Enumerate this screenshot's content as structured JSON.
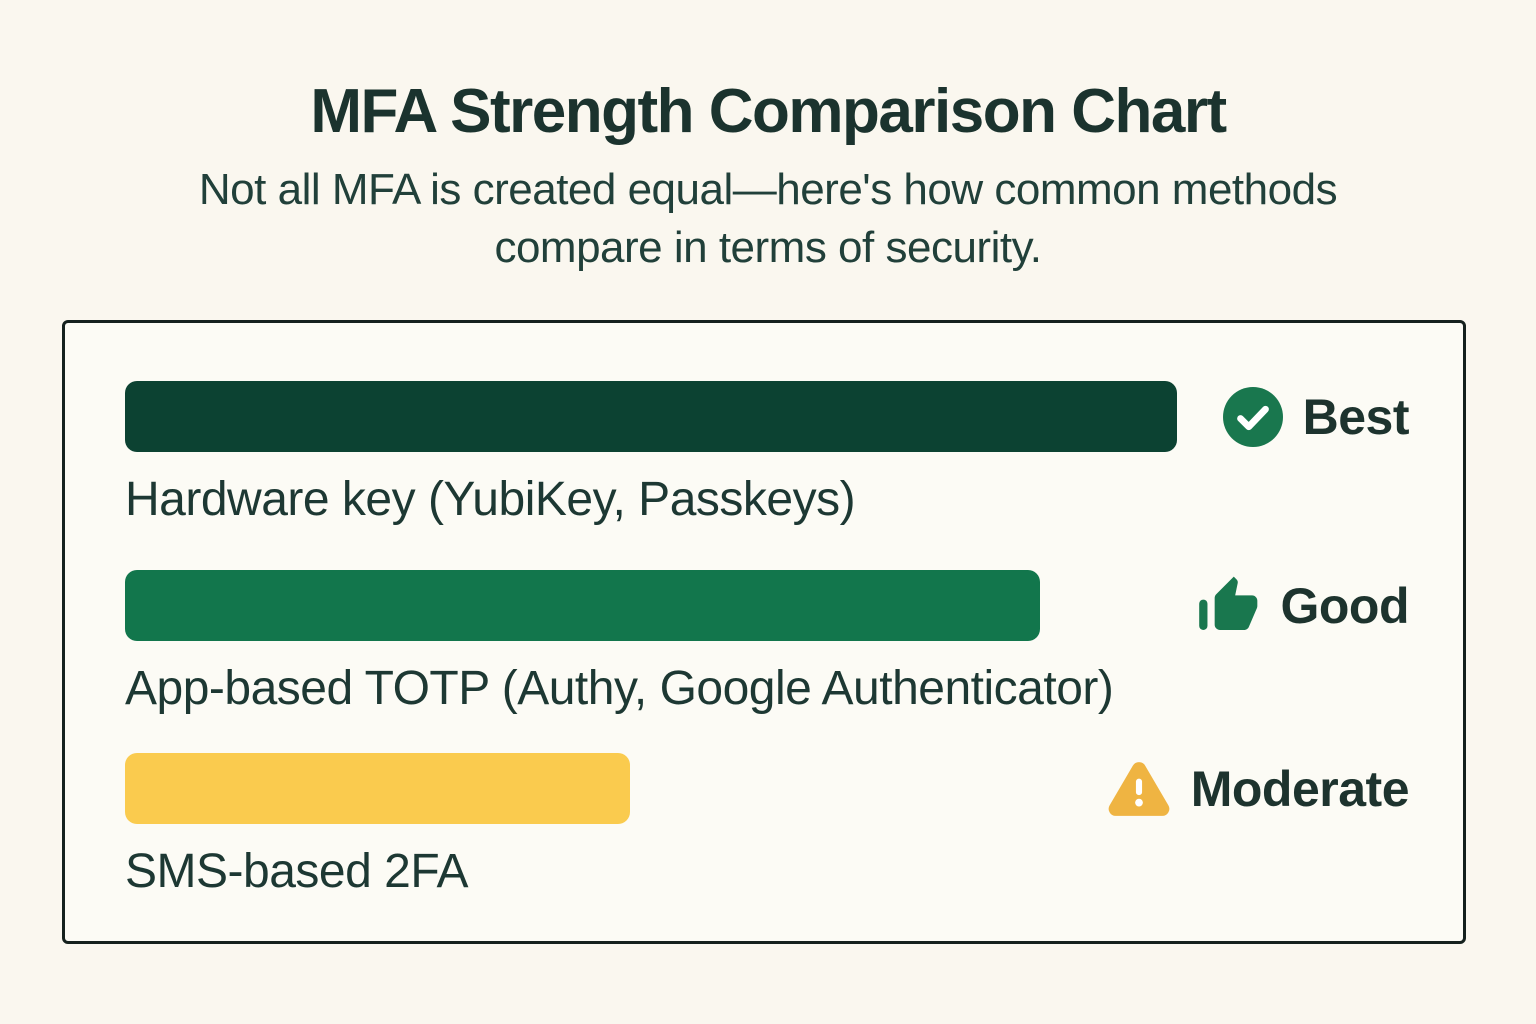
{
  "header": {
    "title": "MFA Strength Comparison Chart",
    "subtitle_line1": "Not all MFA is created equal—here's how common methods",
    "subtitle_line2": "compare in terms of security."
  },
  "colors": {
    "page_background": "#FAF7EF",
    "panel_background": "#FCFBF5",
    "panel_border": "#15211E",
    "heading_text": "#1B332E",
    "body_text": "#1D3833",
    "bar_best": "#0C4232",
    "bar_good": "#12764C",
    "bar_moderate": "#FACB4E",
    "icon_green": "#19774E",
    "icon_amber": "#EFB442"
  },
  "chart_data": {
    "type": "bar",
    "orientation": "horizontal",
    "title": "MFA Strength Comparison Chart",
    "subtitle": "Not all MFA is created equal—here's how common methods compare in terms of security.",
    "categories": [
      "Hardware key (YubiKey, Passkeys)",
      "App-based TOTP (Authy, Google Authenticator)",
      "SMS-based 2FA"
    ],
    "values": [
      82,
      71,
      39
    ],
    "value_unit": "relative security strength, % of track width",
    "legend_position": "right of each bar",
    "grid": false,
    "rows": [
      {
        "label": "Hardware key (YubiKey, Passkeys)",
        "rating": "Best",
        "value_pct": 81.9,
        "bar_color": "#0C4232",
        "icon": "check-circle",
        "icon_color": "#19774E"
      },
      {
        "label": "App-based TOTP (Authy, Google Authenticator)",
        "rating": "Good",
        "value_pct": 71.3,
        "bar_color": "#12764C",
        "icon": "thumbs-up",
        "icon_color": "#19774E"
      },
      {
        "label": "SMS-based 2FA",
        "rating": "Moderate",
        "value_pct": 39.3,
        "bar_color": "#FACB4E",
        "icon": "warning-triangle",
        "icon_color": "#EFB442"
      }
    ]
  }
}
